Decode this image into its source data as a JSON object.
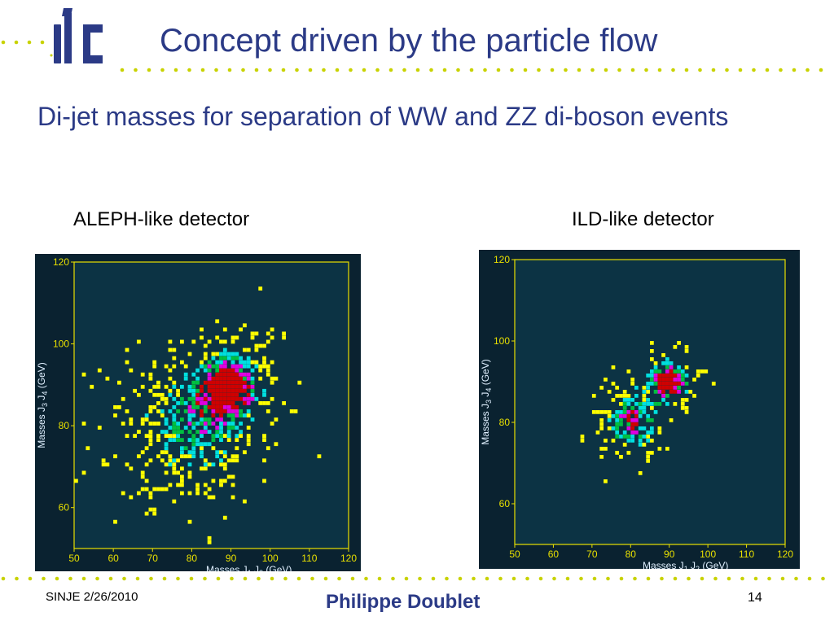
{
  "logo": {
    "text": "ilc",
    "color": "#2b3a86"
  },
  "slide": {
    "title": "Concept driven by the particle flow",
    "bullet": "Di-jet masses for separation of WW and ZZ di-boson events"
  },
  "colors": {
    "title": "#2b3a86",
    "dots": "#c8d200",
    "plot_background": "#0c3344",
    "axis_yellow": "#e8e000",
    "heat_low": "#ffff00",
    "heat_mid": "#00e0e0",
    "heat_high_green": "#00c040",
    "heat_high_magenta": "#e000e0",
    "heat_peak": "#d00000"
  },
  "chart_data": [
    {
      "type": "heatmap",
      "label": "ALEPH-like detector",
      "xlabel": "Masses J",
      "xlabel_sub": "1",
      "xlabel_sub2": "J",
      "xlabel_sub3": "2",
      "xlabel_unit": "(GeV)",
      "ylabel": "Masses J",
      "ylabel_sub": "3",
      "ylabel_sub2": "J",
      "ylabel_sub3": "4",
      "ylabel_unit": "(GeV)",
      "xlim": [
        50,
        120
      ],
      "ylim": [
        50,
        120
      ],
      "xticks": [
        "50",
        "60",
        "70",
        "80",
        "90",
        "100",
        "110",
        "120"
      ],
      "yticks": [
        "120",
        "100",
        "80",
        "60"
      ],
      "clusters": [
        {
          "x": 80,
          "y": 80,
          "spread": 10,
          "density": 0.55
        },
        {
          "x": 90,
          "y": 90,
          "spread": 6,
          "density": 0.8
        }
      ]
    },
    {
      "type": "heatmap",
      "label": "ILD-like detector",
      "xlabel": "Masses J",
      "xlabel_sub": "1",
      "xlabel_sub2": "J",
      "xlabel_sub3": "2",
      "xlabel_unit": "(GeV)",
      "ylabel": "Masses J",
      "ylabel_sub": "3",
      "ylabel_sub2": "J",
      "ylabel_sub3": "4",
      "ylabel_unit": "(GeV)",
      "xlim": [
        50,
        120
      ],
      "ylim": [
        50,
        120
      ],
      "xticks": [
        "50",
        "60",
        "70",
        "80",
        "90",
        "100",
        "110",
        "120"
      ],
      "yticks": [
        "120",
        "100",
        "80",
        "60"
      ],
      "clusters": [
        {
          "x": 80,
          "y": 80,
          "spread": 5,
          "density": 0.75
        },
        {
          "x": 90,
          "y": 90,
          "spread": 4,
          "density": 0.95
        }
      ]
    }
  ],
  "footer": {
    "left": "SINJE 2/26/2010",
    "center": "Philippe Doublet",
    "page": "14"
  }
}
